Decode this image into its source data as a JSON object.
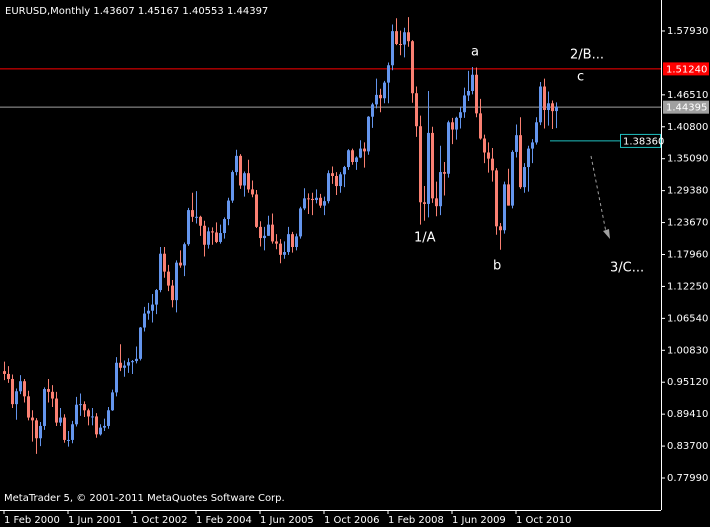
{
  "chart_data": {
    "type": "candlestick",
    "title": "EURUSD,Monthly  1.43607 1.45167 1.40553 1.44397",
    "footer": "MetaTrader 5, © 2001-2011 MetaQuotes Software Corp.",
    "bull_color": "#6495ed",
    "bear_color": "#fa8072",
    "ylim": [
      0.7227,
      1.6347
    ],
    "yticks": [
      {
        "value": 1.5793,
        "label": "1.57930"
      },
      {
        "value": 1.4651,
        "label": "1.46510"
      },
      {
        "value": 1.408,
        "label": "1.40800"
      },
      {
        "value": 1.3509,
        "label": "1.35090"
      },
      {
        "value": 1.2938,
        "label": "1.29380"
      },
      {
        "value": 1.2367,
        "label": "1.23670"
      },
      {
        "value": 1.1796,
        "label": "1.17960"
      },
      {
        "value": 1.1225,
        "label": "1.12250"
      },
      {
        "value": 1.0654,
        "label": "1.06540"
      },
      {
        "value": 1.0083,
        "label": "1.00830"
      },
      {
        "value": 0.9512,
        "label": "0.95120"
      },
      {
        "value": 0.8941,
        "label": "0.89410"
      },
      {
        "value": 0.837,
        "label": "0.83700"
      },
      {
        "value": 0.7799,
        "label": "0.77990"
      }
    ],
    "hlines": [
      {
        "value": 1.5124,
        "label": "1.51240",
        "color": "#ff0000"
      },
      {
        "value": 1.44395,
        "label": "1.44395",
        "color": "#a0a0a0"
      }
    ],
    "level": {
      "value": 1.3836,
      "label": "1.38360",
      "color": "#20c0c0"
    },
    "annotations": [
      {
        "text": "a",
        "color": "#ff2020"
      },
      {
        "text": "2/B...",
        "color": "#20c020"
      },
      {
        "text": "c",
        "color": "#ff2020"
      },
      {
        "text": "1/A",
        "color": "#20c020"
      },
      {
        "text": "b",
        "color": "#ff2020"
      },
      {
        "text": "3/C...",
        "color": "#20c020"
      }
    ],
    "categories": [
      "1 Feb 2000",
      null,
      null,
      null,
      null,
      null,
      null,
      null,
      null,
      null,
      null,
      null,
      null,
      null,
      null,
      null,
      "1 Jun 2001",
      null,
      null,
      null,
      null,
      null,
      null,
      null,
      null,
      null,
      null,
      null,
      null,
      null,
      null,
      null,
      "1 Oct 2002",
      null,
      null,
      null,
      null,
      null,
      null,
      null,
      null,
      null,
      null,
      null,
      null,
      null,
      null,
      null,
      "1 Feb 2004",
      null,
      null,
      null,
      null,
      null,
      null,
      null,
      null,
      null,
      null,
      null,
      null,
      null,
      null,
      null,
      "1 Jun 2005",
      null,
      null,
      null,
      null,
      null,
      null,
      null,
      null,
      null,
      null,
      null,
      null,
      null,
      null,
      null,
      "1 Oct 2006",
      null,
      null,
      null,
      null,
      null,
      null,
      null,
      null,
      null,
      null,
      null,
      null,
      null,
      null,
      null,
      "1 Feb 2008",
      null,
      null,
      null,
      null,
      null,
      null,
      null,
      null,
      null,
      null,
      null,
      null,
      null,
      null,
      null,
      "1 Jun 2009",
      null,
      null,
      null,
      null,
      null,
      null,
      null,
      null,
      null,
      null,
      null,
      null,
      null,
      null,
      null,
      "1 Oct 2010",
      null,
      null,
      null,
      null,
      null,
      null,
      null,
      null,
      null,
      null
    ],
    "ohlc": [
      [
        0.971,
        0.988,
        0.955,
        0.966
      ],
      [
        0.966,
        0.98,
        0.95,
        0.957
      ],
      [
        0.957,
        0.965,
        0.905,
        0.912
      ],
      [
        0.912,
        0.94,
        0.884,
        0.935
      ],
      [
        0.935,
        0.964,
        0.93,
        0.953
      ],
      [
        0.953,
        0.957,
        0.915,
        0.926
      ],
      [
        0.926,
        0.936,
        0.883,
        0.888
      ],
      [
        0.888,
        0.901,
        0.845,
        0.883
      ],
      [
        0.883,
        0.887,
        0.823,
        0.851
      ],
      [
        0.851,
        0.88,
        0.837,
        0.873
      ],
      [
        0.873,
        0.942,
        0.866,
        0.939
      ],
      [
        0.939,
        0.957,
        0.915,
        0.934
      ],
      [
        0.934,
        0.946,
        0.907,
        0.922
      ],
      [
        0.922,
        0.934,
        0.873,
        0.879
      ],
      [
        0.879,
        0.905,
        0.873,
        0.888
      ],
      [
        0.888,
        0.894,
        0.843,
        0.848
      ],
      [
        0.848,
        0.864,
        0.836,
        0.848
      ],
      [
        0.848,
        0.882,
        0.842,
        0.876
      ],
      [
        0.876,
        0.925,
        0.872,
        0.911
      ],
      [
        0.911,
        0.931,
        0.891,
        0.912
      ],
      [
        0.912,
        0.917,
        0.889,
        0.901
      ],
      [
        0.901,
        0.904,
        0.874,
        0.89
      ],
      [
        0.89,
        0.905,
        0.874,
        0.89
      ],
      [
        0.89,
        0.896,
        0.852,
        0.858
      ],
      [
        0.858,
        0.876,
        0.856,
        0.87
      ],
      [
        0.87,
        0.886,
        0.864,
        0.873
      ],
      [
        0.873,
        0.907,
        0.868,
        0.901
      ],
      [
        0.901,
        0.938,
        0.9,
        0.933
      ],
      [
        0.933,
        0.996,
        0.926,
        0.986
      ],
      [
        0.986,
        1.019,
        0.971,
        0.977
      ],
      [
        0.977,
        0.99,
        0.961,
        0.981
      ],
      [
        0.981,
        0.994,
        0.968,
        0.987
      ],
      [
        0.987,
        0.991,
        0.966,
        0.989
      ],
      [
        0.989,
        1.015,
        0.985,
        0.993
      ],
      [
        0.993,
        1.05,
        0.99,
        1.049
      ],
      [
        1.049,
        1.086,
        1.042,
        1.074
      ],
      [
        1.074,
        1.093,
        1.063,
        1.079
      ],
      [
        1.079,
        1.109,
        1.058,
        1.09
      ],
      [
        1.09,
        1.118,
        1.073,
        1.116
      ],
      [
        1.116,
        1.193,
        1.112,
        1.181
      ],
      [
        1.181,
        1.193,
        1.138,
        1.149
      ],
      [
        1.149,
        1.161,
        1.114,
        1.124
      ],
      [
        1.124,
        1.134,
        1.085,
        1.098
      ],
      [
        1.098,
        1.169,
        1.076,
        1.165
      ],
      [
        1.165,
        1.187,
        1.156,
        1.16
      ],
      [
        1.16,
        1.201,
        1.141,
        1.198
      ],
      [
        1.198,
        1.263,
        1.195,
        1.259
      ],
      [
        1.259,
        1.29,
        1.238,
        1.247
      ],
      [
        1.247,
        1.293,
        1.235,
        1.247
      ],
      [
        1.247,
        1.249,
        1.213,
        1.231
      ],
      [
        1.231,
        1.24,
        1.176,
        1.197
      ],
      [
        1.197,
        1.228,
        1.19,
        1.221
      ],
      [
        1.221,
        1.228,
        1.197,
        1.219
      ],
      [
        1.219,
        1.237,
        1.2,
        1.202
      ],
      [
        1.202,
        1.233,
        1.199,
        1.218
      ],
      [
        1.218,
        1.246,
        1.208,
        1.243
      ],
      [
        1.243,
        1.281,
        1.232,
        1.276
      ],
      [
        1.276,
        1.33,
        1.272,
        1.327
      ],
      [
        1.327,
        1.367,
        1.321,
        1.356
      ],
      [
        1.356,
        1.359,
        1.297,
        1.303
      ],
      [
        1.303,
        1.328,
        1.283,
        1.325
      ],
      [
        1.325,
        1.349,
        1.29,
        1.296
      ],
      [
        1.296,
        1.312,
        1.282,
        1.287
      ],
      [
        1.287,
        1.295,
        1.227,
        1.229
      ],
      [
        1.229,
        1.239,
        1.194,
        1.209
      ],
      [
        1.209,
        1.229,
        1.187,
        1.213
      ],
      [
        1.213,
        1.249,
        1.213,
        1.233
      ],
      [
        1.233,
        1.253,
        1.199,
        1.203
      ],
      [
        1.203,
        1.216,
        1.189,
        1.199
      ],
      [
        1.199,
        1.207,
        1.164,
        1.179
      ],
      [
        1.179,
        1.203,
        1.172,
        1.184
      ],
      [
        1.184,
        1.229,
        1.179,
        1.216
      ],
      [
        1.216,
        1.22,
        1.183,
        1.193
      ],
      [
        1.193,
        1.217,
        1.187,
        1.212
      ],
      [
        1.212,
        1.265,
        1.208,
        1.262
      ],
      [
        1.262,
        1.298,
        1.259,
        1.28
      ],
      [
        1.28,
        1.289,
        1.252,
        1.279
      ],
      [
        1.279,
        1.29,
        1.25,
        1.277
      ],
      [
        1.277,
        1.296,
        1.271,
        1.281
      ],
      [
        1.281,
        1.288,
        1.263,
        1.267
      ],
      [
        1.267,
        1.283,
        1.25,
        1.275
      ],
      [
        1.275,
        1.33,
        1.271,
        1.325
      ],
      [
        1.325,
        1.337,
        1.306,
        1.32
      ],
      [
        1.32,
        1.327,
        1.286,
        1.302
      ],
      [
        1.302,
        1.327,
        1.29,
        1.323
      ],
      [
        1.323,
        1.338,
        1.3,
        1.336
      ],
      [
        1.336,
        1.368,
        1.331,
        1.366
      ],
      [
        1.366,
        1.369,
        1.34,
        1.345
      ],
      [
        1.345,
        1.355,
        1.331,
        1.353
      ],
      [
        1.353,
        1.384,
        1.352,
        1.369
      ],
      [
        1.369,
        1.38,
        1.335,
        1.364
      ],
      [
        1.364,
        1.427,
        1.358,
        1.426
      ],
      [
        1.426,
        1.451,
        1.406,
        1.448
      ],
      [
        1.448,
        1.494,
        1.441,
        1.465
      ],
      [
        1.465,
        1.476,
        1.434,
        1.459
      ],
      [
        1.459,
        1.49,
        1.45,
        1.487
      ],
      [
        1.487,
        1.523,
        1.45,
        1.518
      ],
      [
        1.518,
        1.591,
        1.509,
        1.579
      ],
      [
        1.579,
        1.602,
        1.554,
        1.556
      ],
      [
        1.556,
        1.58,
        1.536,
        1.555
      ],
      [
        1.555,
        1.585,
        1.532,
        1.577
      ],
      [
        1.577,
        1.604,
        1.551,
        1.561
      ],
      [
        1.561,
        1.563,
        1.451,
        1.468
      ],
      [
        1.468,
        1.48,
        1.39,
        1.409
      ],
      [
        1.409,
        1.428,
        1.233,
        1.273
      ],
      [
        1.273,
        1.302,
        1.24,
        1.27
      ],
      [
        1.27,
        1.472,
        1.246,
        1.397
      ],
      [
        1.397,
        1.408,
        1.272,
        1.28
      ],
      [
        1.28,
        1.31,
        1.248,
        1.266
      ],
      [
        1.266,
        1.374,
        1.25,
        1.327
      ],
      [
        1.327,
        1.345,
        1.285,
        1.324
      ],
      [
        1.324,
        1.419,
        1.317,
        1.416
      ],
      [
        1.416,
        1.424,
        1.377,
        1.403
      ],
      [
        1.403,
        1.426,
        1.385,
        1.424
      ],
      [
        1.424,
        1.444,
        1.405,
        1.434
      ],
      [
        1.434,
        1.478,
        1.424,
        1.464
      ],
      [
        1.464,
        1.508,
        1.454,
        1.472
      ],
      [
        1.472,
        1.515,
        1.466,
        1.501
      ],
      [
        1.501,
        1.514,
        1.425,
        1.432
      ],
      [
        1.432,
        1.458,
        1.385,
        1.387
      ],
      [
        1.387,
        1.394,
        1.343,
        1.362
      ],
      [
        1.362,
        1.38,
        1.326,
        1.351
      ],
      [
        1.351,
        1.37,
        1.31,
        1.33
      ],
      [
        1.33,
        1.334,
        1.215,
        1.23
      ],
      [
        1.23,
        1.236,
        1.188,
        1.223
      ],
      [
        1.223,
        1.31,
        1.217,
        1.305
      ],
      [
        1.305,
        1.333,
        1.267,
        1.267
      ],
      [
        1.267,
        1.366,
        1.262,
        1.363
      ],
      [
        1.363,
        1.412,
        1.353,
        1.393
      ],
      [
        1.393,
        1.425,
        1.297,
        1.3
      ],
      [
        1.3,
        1.343,
        1.29,
        1.336
      ],
      [
        1.336,
        1.374,
        1.292,
        1.369
      ],
      [
        1.369,
        1.386,
        1.343,
        1.38
      ],
      [
        1.38,
        1.425,
        1.376,
        1.416
      ],
      [
        1.416,
        1.488,
        1.411,
        1.48
      ],
      [
        1.48,
        1.494,
        1.405,
        1.438
      ],
      [
        1.438,
        1.471,
        1.41,
        1.45
      ],
      [
        1.45,
        1.455,
        1.404,
        1.436
      ],
      [
        1.43607,
        1.45167,
        1.40553,
        1.44397
      ]
    ]
  }
}
